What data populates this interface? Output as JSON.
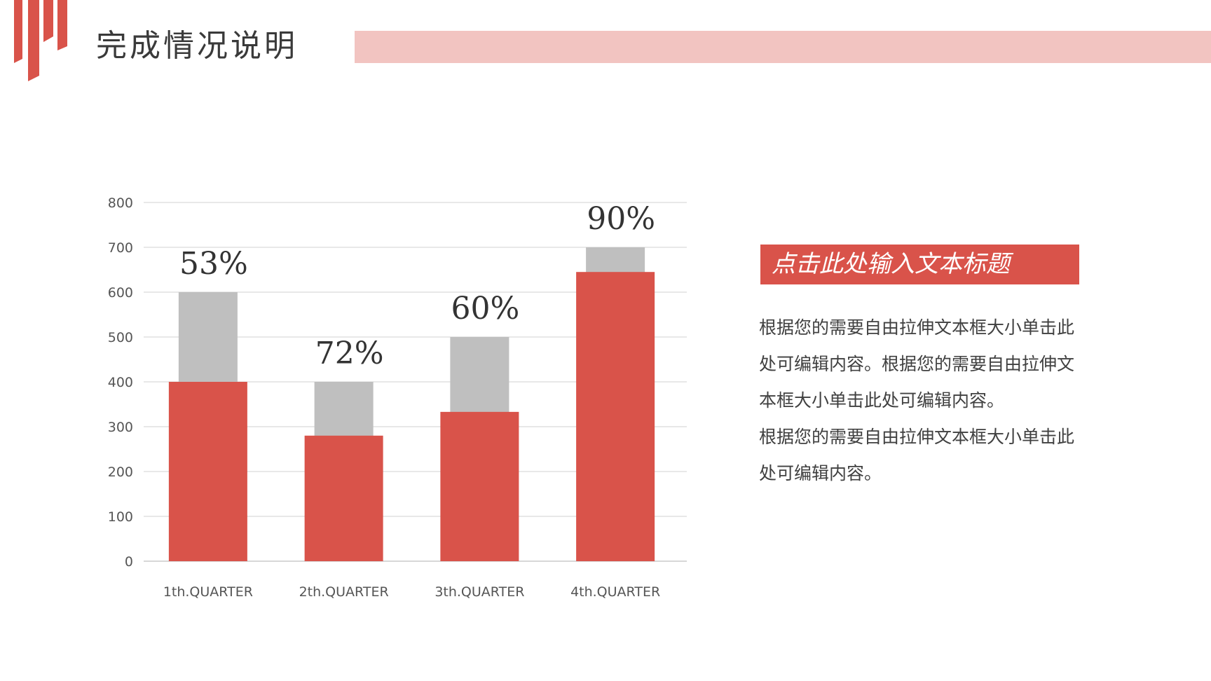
{
  "header": {
    "title": "完成情况说明"
  },
  "colors": {
    "accent": "#d9534a",
    "accent_light": "#f2c4c1",
    "secondary": "#bfbfbf",
    "grid": "#d9d9d9",
    "text": "#3a3a3a"
  },
  "side_panel": {
    "title": "点击此处输入文本标题",
    "paragraphs": [
      "根据您的需要自由拉伸文本框大小单击此处可编辑内容。根据您的需要自由拉伸文本框大小单击此处可编辑内容。",
      "根据您的需要自由拉伸文本框大小单击此处可编辑内容。"
    ]
  },
  "chart_data": {
    "type": "bar",
    "categories": [
      "1th.QUARTER",
      "2th.QUARTER",
      "3th.QUARTER",
      "4th.QUARTER"
    ],
    "series": [
      {
        "values": [
          600,
          400,
          500,
          700
        ],
        "color": "#bfbfbf"
      },
      {
        "values": [
          400,
          280,
          333,
          645
        ],
        "color": "#d9534a"
      }
    ],
    "data_labels": [
      "53%",
      "72%",
      "60%",
      "90%"
    ],
    "ylim": [
      0,
      800
    ],
    "yticks": [
      "0",
      "100",
      "200",
      "300",
      "400",
      "500",
      "600",
      "700",
      "800"
    ],
    "grid": true,
    "legend": "none"
  }
}
